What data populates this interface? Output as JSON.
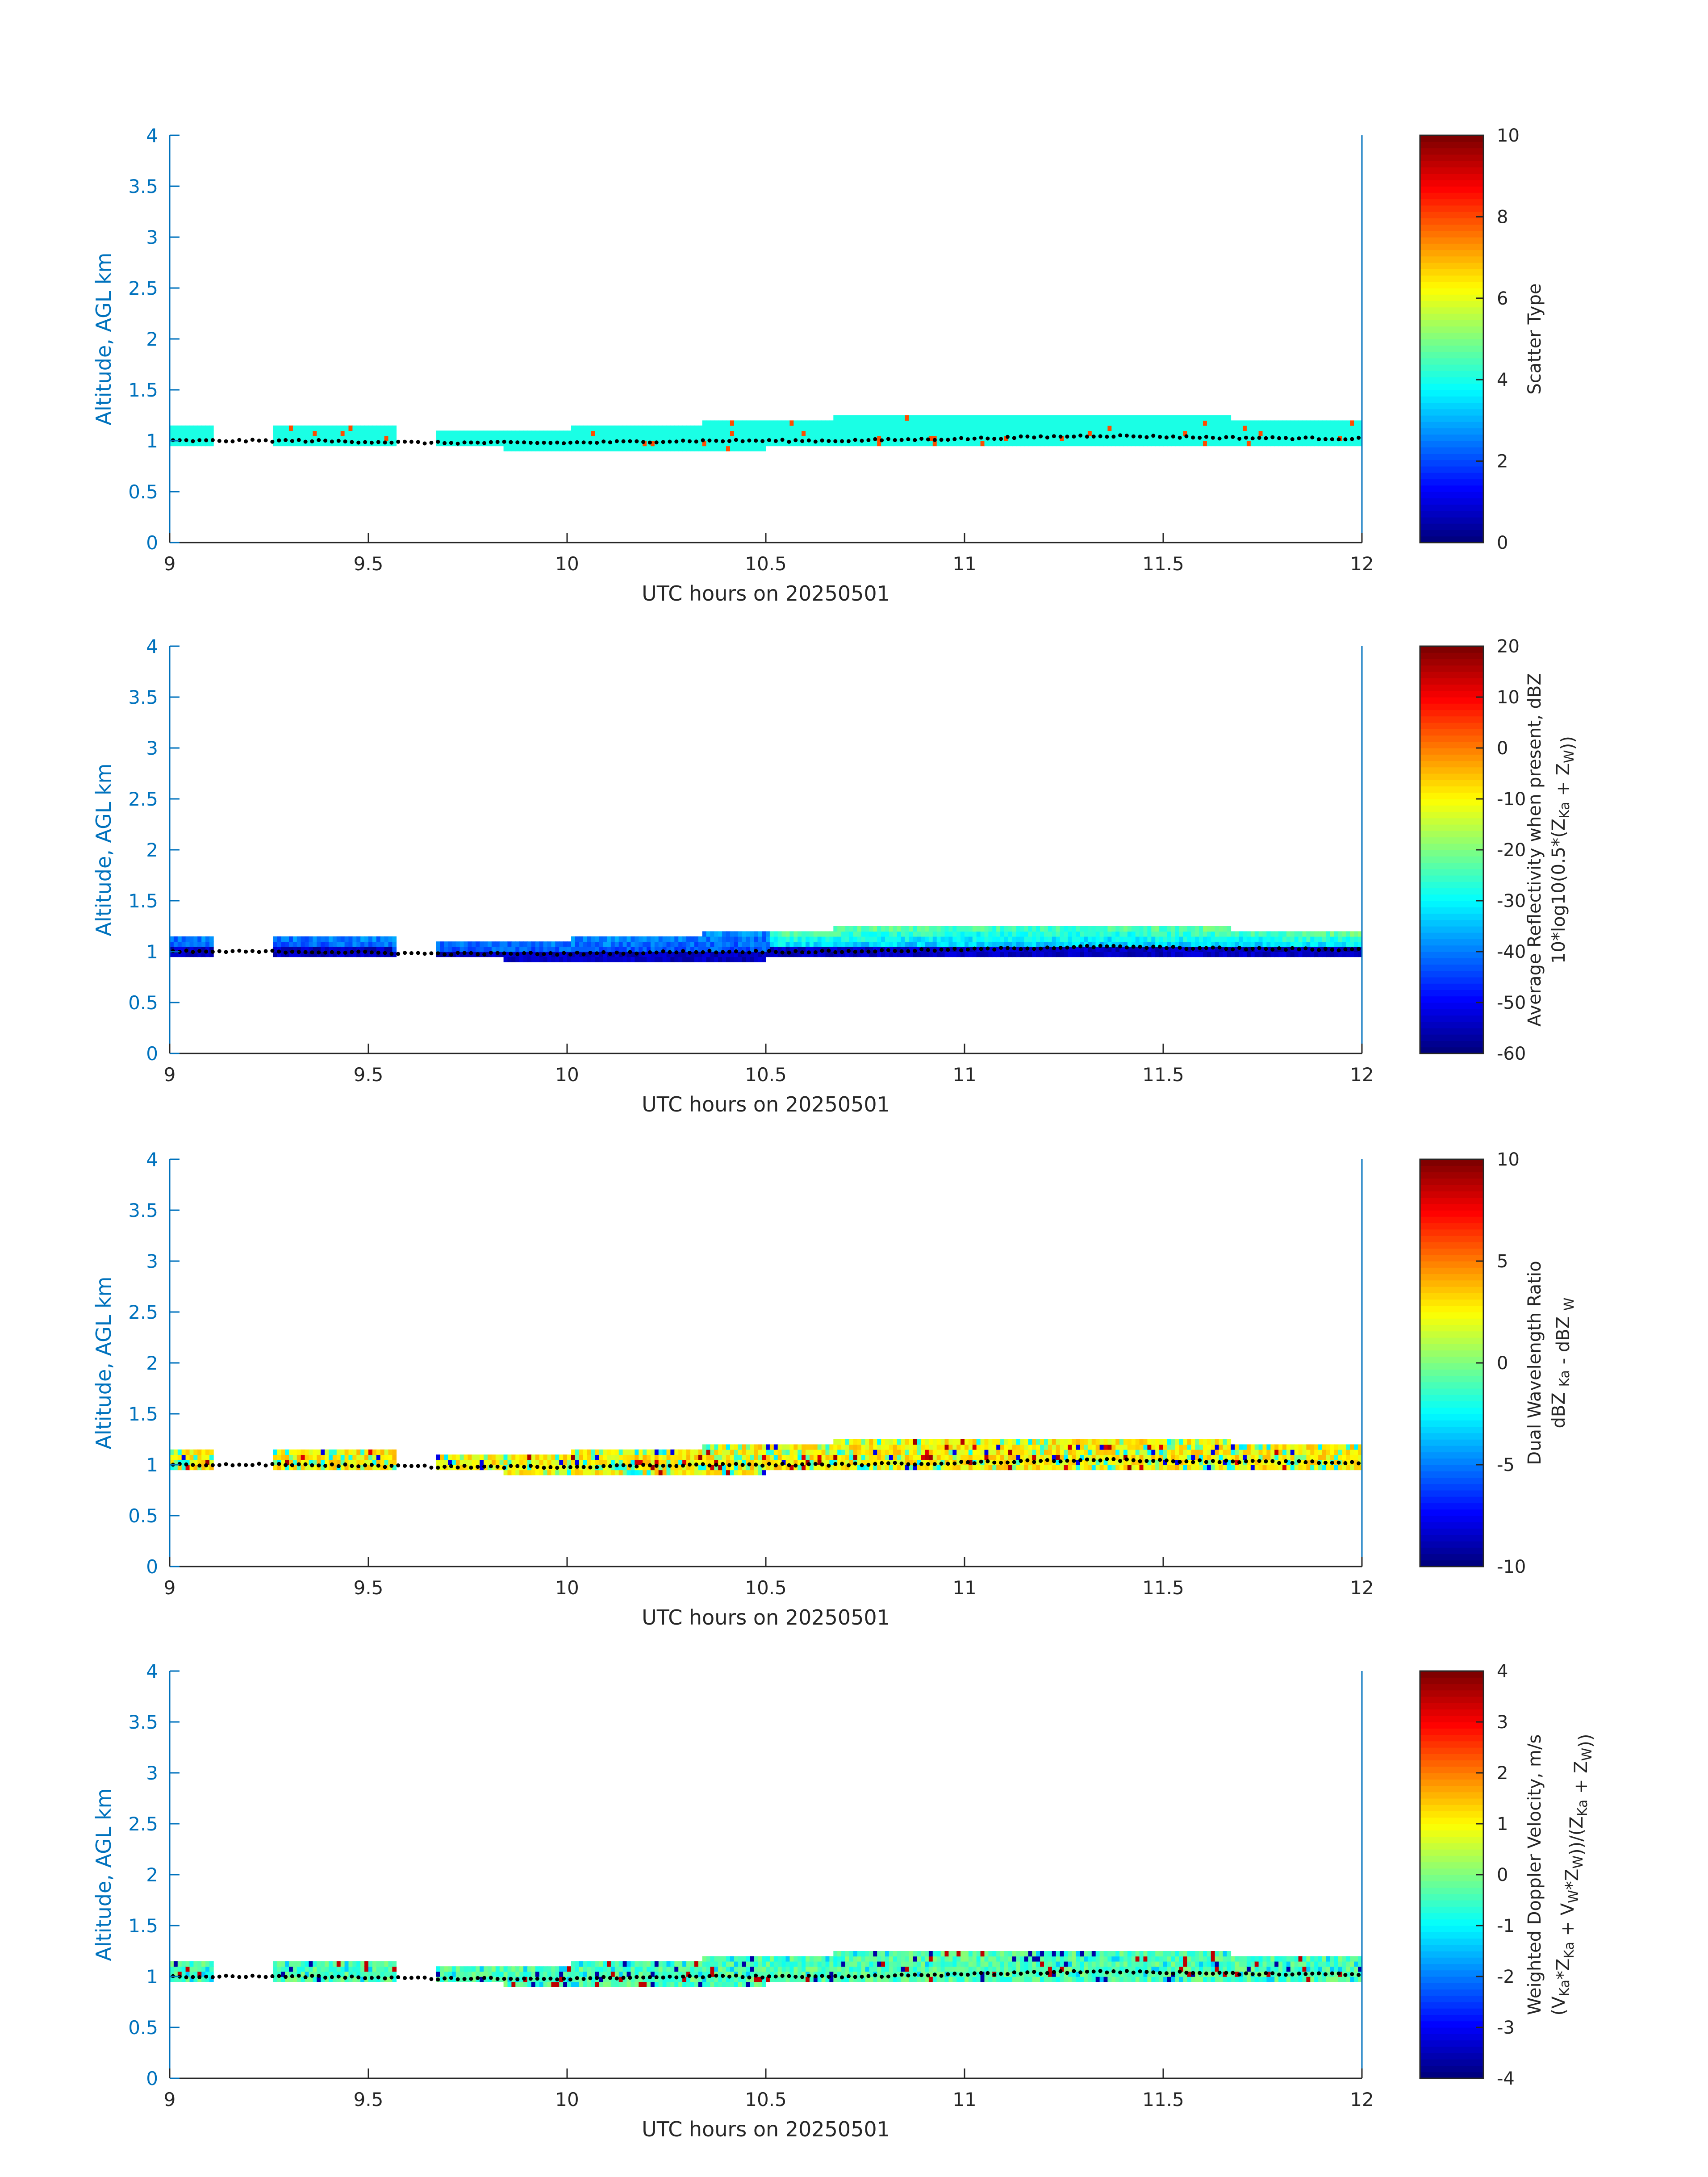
{
  "chart_data": [
    {
      "type": "heatmap",
      "xlabel": "UTC hours on 20250501",
      "ylabel": "Altitude, AGL km",
      "xlim": [
        9,
        12
      ],
      "ylim": [
        0,
        4
      ],
      "xticks": [
        "9",
        "9.5",
        "10",
        "10.5",
        "11",
        "11.5",
        "12"
      ],
      "yticks": [
        "0",
        "0.5",
        "1",
        "1.5",
        "2",
        "2.5",
        "3",
        "3.5",
        "4"
      ],
      "colorbar": {
        "label_lines": [
          "Scatter Type"
        ],
        "range": [
          0,
          10
        ],
        "ticks": [
          "0",
          "2",
          "4",
          "6",
          "8",
          "10"
        ],
        "colormap": "jet"
      },
      "field": "scatter_type",
      "dominant_value": 4,
      "layer_bottom_km": [
        0.95,
        0.95,
        0.95,
        0.9,
        0.9,
        0.95,
        0.95,
        0.95,
        0.95,
        0.95
      ],
      "layer_top_km": [
        1.15,
        1.15,
        1.1,
        1.1,
        1.15,
        1.2,
        1.25,
        1.25,
        1.2,
        1.15
      ],
      "cloud_base_km": [
        1.0,
        1.0,
        0.98,
        0.98,
        1.0,
        1.0,
        1.02,
        1.05,
        1.03,
        1.02
      ]
    },
    {
      "type": "heatmap",
      "xlabel": "UTC hours on 20250501",
      "ylabel": "Altitude, AGL km",
      "xlim": [
        9,
        12
      ],
      "ylim": [
        0,
        4
      ],
      "xticks": [
        "9",
        "9.5",
        "10",
        "10.5",
        "11",
        "11.5",
        "12"
      ],
      "yticks": [
        "0",
        "0.5",
        "1",
        "1.5",
        "2",
        "2.5",
        "3",
        "3.5",
        "4"
      ],
      "colorbar": {
        "label_lines": [
          "Average Reflectivity when present, dBZ",
          "10*log10(0.5*(Z<sub>Ka</sub> + Z<sub>W</sub>))"
        ],
        "range": [
          -60,
          20
        ],
        "ticks": [
          "-60",
          "-50",
          "-40",
          "-30",
          "-20",
          "-10",
          "0",
          "10",
          "20"
        ],
        "colormap": "jet"
      },
      "field": "avg_reflectivity_dbz",
      "layer_bottom_km": [
        0.95,
        0.95,
        0.95,
        0.9,
        0.9,
        0.95,
        0.95,
        0.95,
        0.95,
        0.95
      ],
      "layer_top_km": [
        1.15,
        1.15,
        1.1,
        1.1,
        1.15,
        1.2,
        1.25,
        1.25,
        1.2,
        1.15
      ],
      "cloud_base_km": [
        1.0,
        1.0,
        0.98,
        0.98,
        1.0,
        1.0,
        1.02,
        1.05,
        1.03,
        1.02
      ]
    },
    {
      "type": "heatmap",
      "xlabel": "UTC hours on 20250501",
      "ylabel": "Altitude, AGL km",
      "xlim": [
        9,
        12
      ],
      "ylim": [
        0,
        4
      ],
      "xticks": [
        "9",
        "9.5",
        "10",
        "10.5",
        "11",
        "11.5",
        "12"
      ],
      "yticks": [
        "0",
        "0.5",
        "1",
        "1.5",
        "2",
        "2.5",
        "3",
        "3.5",
        "4"
      ],
      "colorbar": {
        "label_lines": [
          "Dual Wavelength Ratio",
          "dBZ <sub>Ka</sub> - dBZ <sub>W</sub>"
        ],
        "range": [
          -10,
          10
        ],
        "ticks": [
          "-10",
          "-5",
          "0",
          "5",
          "10"
        ],
        "colormap": "jet"
      },
      "field": "dual_wavelength_ratio_db",
      "layer_bottom_km": [
        0.95,
        0.95,
        0.95,
        0.9,
        0.9,
        0.95,
        0.95,
        0.95,
        0.95,
        0.95
      ],
      "layer_top_km": [
        1.15,
        1.15,
        1.1,
        1.1,
        1.15,
        1.2,
        1.25,
        1.25,
        1.2,
        1.15
      ],
      "cloud_base_km": [
        1.0,
        1.0,
        0.98,
        0.98,
        1.0,
        1.0,
        1.02,
        1.05,
        1.03,
        1.02
      ]
    },
    {
      "type": "heatmap",
      "xlabel": "UTC hours on 20250501",
      "ylabel": "Altitude, AGL km",
      "xlim": [
        9,
        12
      ],
      "ylim": [
        0,
        4
      ],
      "xticks": [
        "9",
        "9.5",
        "10",
        "10.5",
        "11",
        "11.5",
        "12"
      ],
      "yticks": [
        "0",
        "0.5",
        "1",
        "1.5",
        "2",
        "2.5",
        "3",
        "3.5",
        "4"
      ],
      "colorbar": {
        "label_lines": [
          "Weighted Doppler Velocity, m/s",
          "(V<sub>Ka</sub>*Z<sub>Ka</sub> + V<sub>W</sub>*Z<sub>W</sub>))/(Z<sub>Ka</sub> + Z<sub>W</sub>))"
        ],
        "range": [
          -4,
          4
        ],
        "ticks": [
          "-4",
          "-3",
          "-2",
          "-1",
          "0",
          "1",
          "2",
          "3",
          "4"
        ],
        "colormap": "jet"
      },
      "field": "weighted_doppler_velocity_ms",
      "layer_bottom_km": [
        0.95,
        0.95,
        0.95,
        0.9,
        0.9,
        0.95,
        0.95,
        0.95,
        0.95,
        0.95
      ],
      "layer_top_km": [
        1.15,
        1.15,
        1.1,
        1.1,
        1.15,
        1.2,
        1.25,
        1.25,
        1.2,
        1.15
      ],
      "cloud_base_km": [
        1.0,
        1.0,
        0.98,
        0.98,
        1.0,
        1.0,
        1.02,
        1.05,
        1.03,
        1.02
      ]
    }
  ],
  "data_gaps_utc": [
    [
      9.11,
      9.26
    ],
    [
      9.57,
      9.67
    ]
  ]
}
